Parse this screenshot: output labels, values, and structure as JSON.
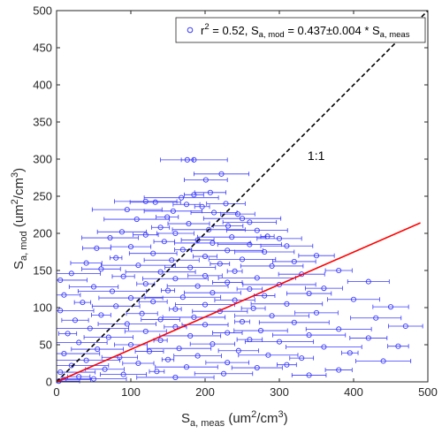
{
  "chart_data": {
    "type": "scatter",
    "x_label": {
      "main": "S",
      "sub": "a, meas",
      "unit_open": " (um",
      "unit_sup": "2",
      "unit_close": "/cm",
      "unit_sup2": "3",
      "unit_end": ")"
    },
    "y_label": {
      "main": "S",
      "sub": "a, mod",
      "unit_open": " (um",
      "unit_sup": "2",
      "unit_close": "/cm",
      "unit_sup2": "3",
      "unit_end": ")"
    },
    "xlim": [
      0,
      500
    ],
    "ylim": [
      0,
      500
    ],
    "x_ticks": [
      "0",
      "100",
      "200",
      "300",
      "400",
      "500"
    ],
    "y_ticks": [
      "0",
      "50",
      "100",
      "150",
      "200",
      "250",
      "300",
      "350",
      "400",
      "450",
      "500"
    ],
    "grid": false,
    "legend": {
      "position": "top-right",
      "r_label": "r",
      "r_sup": "2",
      "r_value": " = 0.52, S",
      "mod_sub": "a, mod",
      "equation": " = 0.437±0.004 * S",
      "meas_sub": "a, meas"
    },
    "series": [
      {
        "marker": "open-circle",
        "error_bars": "horizontal",
        "color": "#3a3aff",
        "points": [
          [
            176,
            299
          ],
          [
            185,
            299
          ],
          [
            222,
            280
          ],
          [
            201,
            272
          ],
          [
            207,
            255
          ],
          [
            185,
            252
          ],
          [
            168,
            248
          ],
          [
            120,
            243
          ],
          [
            133,
            242
          ],
          [
            228,
            240
          ],
          [
            175,
            239
          ],
          [
            196,
            236
          ],
          [
            95,
            232
          ],
          [
            157,
            230
          ],
          [
            212,
            228
          ],
          [
            244,
            226
          ],
          [
            149,
            222
          ],
          [
            250,
            220
          ],
          [
            108,
            219
          ],
          [
            260,
            215
          ],
          [
            178,
            213
          ],
          [
            231,
            210
          ],
          [
            140,
            208
          ],
          [
            205,
            205
          ],
          [
            270,
            204
          ],
          [
            88,
            202
          ],
          [
            160,
            200
          ],
          [
            120,
            198
          ],
          [
            284,
            196
          ],
          [
            236,
            195
          ],
          [
            72,
            194
          ],
          [
            300,
            193
          ],
          [
            190,
            191
          ],
          [
            145,
            189
          ],
          [
            210,
            187
          ],
          [
            260,
            185
          ],
          [
            310,
            183
          ],
          [
            100,
            182
          ],
          [
            54,
            180
          ],
          [
            170,
            178
          ],
          [
            230,
            177
          ],
          [
            280,
            175
          ],
          [
            130,
            173
          ],
          [
            350,
            170
          ],
          [
            200,
            169
          ],
          [
            80,
            167
          ],
          [
            250,
            165
          ],
          [
            155,
            164
          ],
          [
            320,
            162
          ],
          [
            40,
            160
          ],
          [
            220,
            159
          ],
          [
            110,
            157
          ],
          [
            290,
            156
          ],
          [
            180,
            154
          ],
          [
            60,
            152
          ],
          [
            380,
            150
          ],
          [
            240,
            149
          ],
          [
            140,
            148
          ],
          [
            20,
            146
          ],
          [
            330,
            145
          ],
          [
            200,
            143
          ],
          [
            90,
            142
          ],
          [
            270,
            140
          ],
          [
            160,
            139
          ],
          [
            5,
            137
          ],
          [
            420,
            135
          ],
          [
            230,
            134
          ],
          [
            120,
            132
          ],
          [
            300,
            131
          ],
          [
            190,
            129
          ],
          [
            50,
            128
          ],
          [
            360,
            126
          ],
          [
            260,
            125
          ],
          [
            150,
            123
          ],
          [
            75,
            122
          ],
          [
            210,
            120
          ],
          [
            340,
            119
          ],
          [
            10,
            117
          ],
          [
            280,
            116
          ],
          [
            170,
            114
          ],
          [
            100,
            113
          ],
          [
            400,
            111
          ],
          [
            240,
            110
          ],
          [
            130,
            108
          ],
          [
            35,
            107
          ],
          [
            310,
            105
          ],
          [
            200,
            104
          ],
          [
            80,
            102
          ],
          [
            450,
            101
          ],
          [
            265,
            99
          ],
          [
            160,
            98
          ],
          [
            5,
            96
          ],
          [
            220,
            95
          ],
          [
            350,
            93
          ],
          [
            115,
            92
          ],
          [
            60,
            90
          ],
          [
            290,
            89
          ],
          [
            185,
            87
          ],
          [
            430,
            86
          ],
          [
            140,
            84
          ],
          [
            25,
            83
          ],
          [
            250,
            81
          ],
          [
            320,
            80
          ],
          [
            95,
            78
          ],
          [
            200,
            77
          ],
          [
            470,
            75
          ],
          [
            160,
            74
          ],
          [
            45,
            72
          ],
          [
            380,
            71
          ],
          [
            275,
            69
          ],
          [
            120,
            68
          ],
          [
            230,
            66
          ],
          [
            15,
            65
          ],
          [
            340,
            63
          ],
          [
            180,
            62
          ],
          [
            70,
            60
          ],
          [
            420,
            59
          ],
          [
            260,
            57
          ],
          [
            140,
            56
          ],
          [
            300,
            54
          ],
          [
            30,
            53
          ],
          [
            210,
            51
          ],
          [
            100,
            50
          ],
          [
            460,
            48
          ],
          [
            360,
            47
          ],
          [
            165,
            45
          ],
          [
            55,
            44
          ],
          [
            245,
            42
          ],
          [
            125,
            41
          ],
          [
            395,
            39
          ],
          [
            10,
            38
          ],
          [
            285,
            36
          ],
          [
            190,
            35
          ],
          [
            85,
            33
          ],
          [
            330,
            32
          ],
          [
            150,
            30
          ],
          [
            40,
            29
          ],
          [
            440,
            28
          ],
          [
            230,
            26
          ],
          [
            110,
            25
          ],
          [
            310,
            23
          ],
          [
            20,
            22
          ],
          [
            175,
            20
          ],
          [
            270,
            19
          ],
          [
            65,
            17
          ],
          [
            380,
            16
          ],
          [
            135,
            14
          ],
          [
            5,
            13
          ],
          [
            225,
            11
          ],
          [
            90,
            10
          ],
          [
            340,
            9
          ],
          [
            30,
            7
          ],
          [
            160,
            6
          ],
          [
            50,
            4
          ],
          [
            10,
            3
          ],
          [
            3,
            1
          ]
        ]
      }
    ],
    "fit_line": {
      "slope": 0.437,
      "x_start": 0,
      "x_end": 490,
      "color": "#ff0000"
    },
    "one_to_one_line": {
      "x_start": 0,
      "x_end": 500,
      "label": "1:1",
      "label_at": [
        338,
        299
      ],
      "color": "#000000"
    }
  }
}
